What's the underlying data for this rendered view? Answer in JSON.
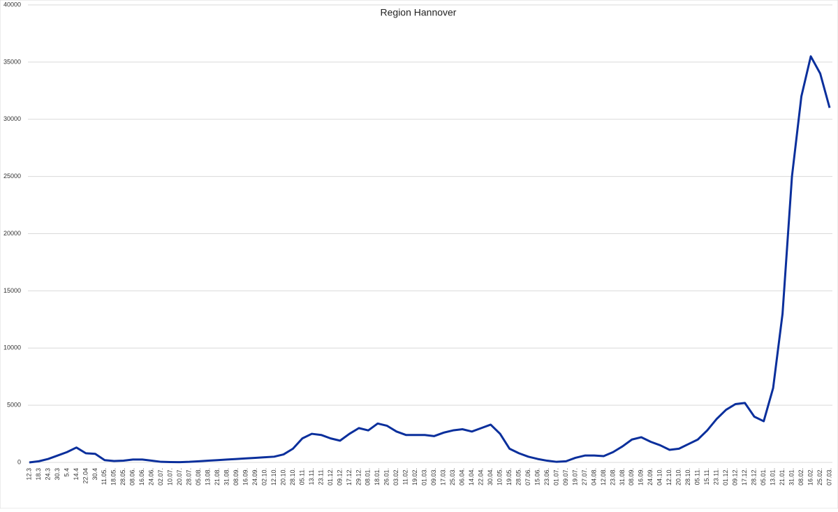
{
  "chart_data": {
    "type": "line",
    "title": "Region Hannover",
    "categories": [
      "12.3",
      "18.3",
      "24.3",
      "30.3",
      "5.4",
      "14.4",
      "22.04",
      "30.4",
      "11.05.",
      "18.05.",
      "28.05.",
      "08.06.",
      "16.06.",
      "24.06.",
      "02.07.",
      "10.07.",
      "20.07.",
      "28.07.",
      "05.08.",
      "13.08.",
      "21.08.",
      "31.08.",
      "08.09.",
      "16.09.",
      "24.09.",
      "02.10.",
      "12.10.",
      "20.10.",
      "28.10.",
      "05.11.",
      "13.11.",
      "23.11.",
      "01.12.",
      "09.12.",
      "17.12.",
      "29.12.",
      "08.01.",
      "18.01.",
      "26.01.",
      "03.02.",
      "11.02.",
      "19.02.",
      "01.03.",
      "09.03.",
      "17.03.",
      "25.03.",
      "06.04.",
      "14.04.",
      "22.04.",
      "30.04.",
      "10.05.",
      "19.05.",
      "28.05.",
      "07.06.",
      "15.06.",
      "23.06.",
      "01.07.",
      "09.07.",
      "19.07.",
      "27.07.",
      "04.08.",
      "12.08.",
      "23.08.",
      "31.08.",
      "08.09.",
      "16.09.",
      "24.09.",
      "04.10.",
      "12.10.",
      "20.10.",
      "28.10.",
      "05.11.",
      "15.11.",
      "23.11.",
      "01.12.",
      "09.12.",
      "17.12.",
      "28.12.",
      "05.01.",
      "13.01.",
      "21.01.",
      "31.01.",
      "08.02.",
      "16.02.",
      "25.02.",
      "07.03."
    ],
    "series": [
      {
        "name": "Region Hannover",
        "color": "#0a2f9c",
        "values": [
          0,
          100,
          300,
          600,
          900,
          1300,
          800,
          750,
          200,
          120,
          150,
          250,
          250,
          150,
          50,
          30,
          20,
          50,
          100,
          150,
          200,
          250,
          300,
          350,
          400,
          450,
          500,
          700,
          1200,
          2100,
          2500,
          2400,
          2100,
          1900,
          2500,
          3000,
          2800,
          3400,
          3200,
          2700,
          2400,
          2400,
          2400,
          2300,
          2600,
          2800,
          2900,
          2700,
          3000,
          3300,
          2500,
          1200,
          800,
          500,
          300,
          150,
          50,
          100,
          400,
          600,
          600,
          550,
          900,
          1400,
          2000,
          2200,
          1800,
          1500,
          1100,
          1200,
          1600,
          2000,
          2800,
          3800,
          4600,
          5100,
          5200,
          4000,
          3600,
          6500,
          13000,
          25000,
          32000,
          35500,
          34000,
          31000
        ]
      }
    ],
    "ylim": [
      0,
      40000
    ],
    "yticks": [
      0,
      5000,
      10000,
      15000,
      20000,
      25000,
      30000,
      35000,
      40000
    ],
    "grid": true
  }
}
